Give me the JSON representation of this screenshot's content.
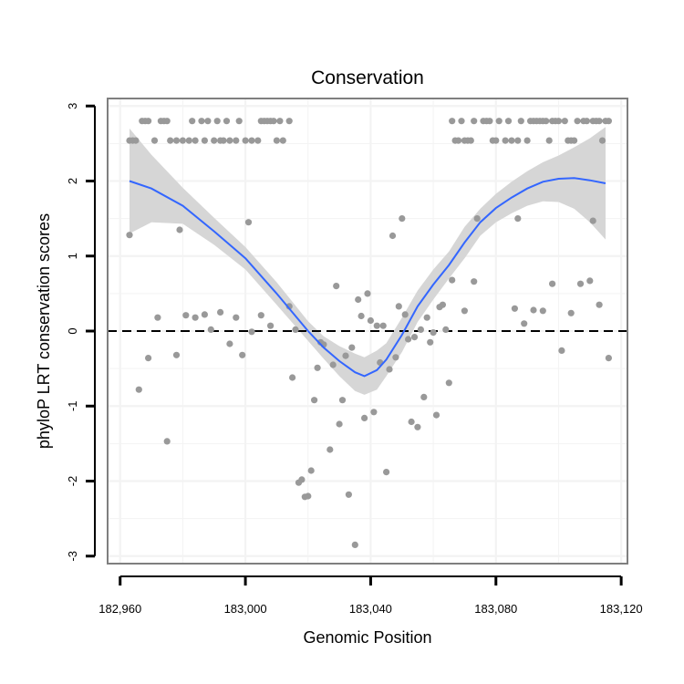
{
  "chart_data": {
    "type": "scatter",
    "title": "Conservation",
    "xlabel": "Genomic Position",
    "ylabel": "phyloP LRT conservation scores",
    "xlim": [
      182956,
      183122
    ],
    "ylim": [
      -3.1,
      3.1
    ],
    "x_ticks": [
      182960,
      183000,
      183040,
      183080,
      183120
    ],
    "x_tick_labels": [
      "182,960",
      "183,000",
      "183,040",
      "183,080",
      "183,120"
    ],
    "y_ticks": [
      -3,
      -2,
      -1,
      0,
      1,
      2,
      3
    ],
    "y_tick_labels": [
      "-3",
      "-2",
      "-1",
      "0",
      "1",
      "2",
      "3"
    ],
    "grid": true,
    "reference_line": {
      "y": 0,
      "style": "dashed"
    },
    "colors": {
      "points": "#999999",
      "smooth_line": "#3366ff",
      "confidence_band": "#d6d6d6",
      "panel_border": "#7f7f7f",
      "grid": "#f3f3f3",
      "reference_line": "#000000"
    },
    "points": [
      [
        182963,
        1.28
      ],
      [
        182966,
        -0.78
      ],
      [
        182969,
        -0.36
      ],
      [
        182972,
        0.18
      ],
      [
        182975,
        -1.47
      ],
      [
        182978,
        -0.32
      ],
      [
        182979,
        1.35
      ],
      [
        182981,
        0.21
      ],
      [
        182984,
        0.18
      ],
      [
        182987,
        0.22
      ],
      [
        182989,
        0.02
      ],
      [
        182992,
        0.25
      ],
      [
        182995,
        -0.17
      ],
      [
        182997,
        0.18
      ],
      [
        182999,
        -0.32
      ],
      [
        183001,
        1.45
      ],
      [
        183002,
        -0.01
      ],
      [
        183005,
        0.21
      ],
      [
        183008,
        0.07
      ],
      [
        183014,
        0.33
      ],
      [
        183015,
        -0.62
      ],
      [
        183016,
        0.02
      ],
      [
        183017,
        -2.02
      ],
      [
        183018,
        -1.98
      ],
      [
        183019,
        -2.21
      ],
      [
        183020,
        -2.2
      ],
      [
        183021,
        -1.86
      ],
      [
        183022,
        -0.92
      ],
      [
        183023,
        -0.49
      ],
      [
        183024,
        -0.15
      ],
      [
        183025,
        -0.18
      ],
      [
        183027,
        -1.58
      ],
      [
        183028,
        -0.45
      ],
      [
        183029,
        0.6
      ],
      [
        183030,
        -1.24
      ],
      [
        183031,
        -0.92
      ],
      [
        183032,
        -0.33
      ],
      [
        183033,
        -2.18
      ],
      [
        183034,
        -0.22
      ],
      [
        183035,
        -2.85
      ],
      [
        183036,
        0.42
      ],
      [
        183037,
        0.2
      ],
      [
        183038,
        -1.16
      ],
      [
        183039,
        0.5
      ],
      [
        183040,
        0.14
      ],
      [
        183041,
        -1.08
      ],
      [
        183042,
        0.07
      ],
      [
        183043,
        -0.42
      ],
      [
        183044,
        0.07
      ],
      [
        183045,
        -1.88
      ],
      [
        183046,
        -0.51
      ],
      [
        183047,
        1.27
      ],
      [
        183048,
        -0.35
      ],
      [
        183049,
        0.33
      ],
      [
        183050,
        1.5
      ],
      [
        183051,
        0.22
      ],
      [
        183052,
        -0.11
      ],
      [
        183053,
        -1.21
      ],
      [
        183054,
        -0.08
      ],
      [
        183055,
        -1.28
      ],
      [
        183056,
        0.02
      ],
      [
        183057,
        -0.88
      ],
      [
        183058,
        0.18
      ],
      [
        183059,
        -0.15
      ],
      [
        183060,
        -0.02
      ],
      [
        183061,
        -1.12
      ],
      [
        183062,
        0.32
      ],
      [
        183063,
        0.35
      ],
      [
        183064,
        0.02
      ],
      [
        183065,
        -0.69
      ],
      [
        183066,
        0.68
      ],
      [
        183070,
        0.27
      ],
      [
        183073,
        0.66
      ],
      [
        183074,
        1.5
      ],
      [
        183086,
        0.3
      ],
      [
        183087,
        1.5
      ],
      [
        183089,
        0.1
      ],
      [
        183092,
        0.28
      ],
      [
        183095,
        0.27
      ],
      [
        183098,
        0.63
      ],
      [
        183101,
        -0.26
      ],
      [
        183104,
        0.24
      ],
      [
        183107,
        0.63
      ],
      [
        183110,
        0.67
      ],
      [
        183111,
        1.47
      ],
      [
        183113,
        0.35
      ],
      [
        183116,
        -0.36
      ],
      [
        182963,
        2.54
      ],
      [
        182964,
        2.54
      ],
      [
        182965,
        2.54
      ],
      [
        182967,
        2.8
      ],
      [
        182968,
        2.8
      ],
      [
        182969,
        2.8
      ],
      [
        182971,
        2.54
      ],
      [
        182973,
        2.8
      ],
      [
        182974,
        2.8
      ],
      [
        182975,
        2.8
      ],
      [
        182976,
        2.54
      ],
      [
        182978,
        2.54
      ],
      [
        182980,
        2.54
      ],
      [
        182982,
        2.54
      ],
      [
        182983,
        2.8
      ],
      [
        182984,
        2.54
      ],
      [
        182986,
        2.8
      ],
      [
        182987,
        2.54
      ],
      [
        182988,
        2.8
      ],
      [
        182990,
        2.54
      ],
      [
        182991,
        2.8
      ],
      [
        182992,
        2.54
      ],
      [
        182993,
        2.54
      ],
      [
        182994,
        2.8
      ],
      [
        182995,
        2.54
      ],
      [
        182997,
        2.54
      ],
      [
        182998,
        2.8
      ],
      [
        183000,
        2.54
      ],
      [
        183002,
        2.54
      ],
      [
        183004,
        2.54
      ],
      [
        183005,
        2.8
      ],
      [
        183006,
        2.8
      ],
      [
        183007,
        2.8
      ],
      [
        183008,
        2.8
      ],
      [
        183009,
        2.8
      ],
      [
        183010,
        2.54
      ],
      [
        183011,
        2.8
      ],
      [
        183012,
        2.54
      ],
      [
        183014,
        2.8
      ],
      [
        183066,
        2.8
      ],
      [
        183067,
        2.54
      ],
      [
        183068,
        2.54
      ],
      [
        183069,
        2.8
      ],
      [
        183070,
        2.54
      ],
      [
        183071,
        2.54
      ],
      [
        183072,
        2.54
      ],
      [
        183073,
        2.8
      ],
      [
        183076,
        2.8
      ],
      [
        183077,
        2.8
      ],
      [
        183078,
        2.8
      ],
      [
        183079,
        2.54
      ],
      [
        183080,
        2.54
      ],
      [
        183081,
        2.8
      ],
      [
        183083,
        2.54
      ],
      [
        183084,
        2.8
      ],
      [
        183085,
        2.54
      ],
      [
        183087,
        2.54
      ],
      [
        183088,
        2.8
      ],
      [
        183090,
        2.54
      ],
      [
        183091,
        2.8
      ],
      [
        183092,
        2.8
      ],
      [
        183093,
        2.8
      ],
      [
        183094,
        2.8
      ],
      [
        183095,
        2.8
      ],
      [
        183096,
        2.8
      ],
      [
        183097,
        2.54
      ],
      [
        183098,
        2.8
      ],
      [
        183099,
        2.8
      ],
      [
        183100,
        2.8
      ],
      [
        183102,
        2.8
      ],
      [
        183103,
        2.54
      ],
      [
        183104,
        2.54
      ],
      [
        183105,
        2.54
      ],
      [
        183106,
        2.8
      ],
      [
        183108,
        2.8
      ],
      [
        183109,
        2.8
      ],
      [
        183111,
        2.8
      ],
      [
        183112,
        2.8
      ],
      [
        183113,
        2.8
      ],
      [
        183114,
        2.54
      ],
      [
        183115,
        2.8
      ],
      [
        183116,
        2.8
      ]
    ],
    "smooth": {
      "x": [
        182963,
        182970,
        182980,
        182990,
        183000,
        183010,
        183020,
        183025,
        183030,
        183035,
        183038,
        183042,
        183045,
        183050,
        183055,
        183060,
        183065,
        183070,
        183075,
        183080,
        183085,
        183090,
        183095,
        183100,
        183105,
        183110,
        183115
      ],
      "y": [
        2.0,
        1.9,
        1.67,
        1.33,
        0.97,
        0.5,
        0.0,
        -0.22,
        -0.4,
        -0.55,
        -0.6,
        -0.52,
        -0.38,
        -0.05,
        0.33,
        0.62,
        0.88,
        1.18,
        1.45,
        1.64,
        1.78,
        1.9,
        1.99,
        2.03,
        2.04,
        2.01,
        1.97
      ],
      "lower": [
        1.3,
        1.45,
        1.43,
        1.15,
        0.82,
        0.35,
        -0.13,
        -0.37,
        -0.6,
        -0.8,
        -0.85,
        -0.78,
        -0.6,
        -0.28,
        0.12,
        0.42,
        0.7,
        0.97,
        1.27,
        1.45,
        1.57,
        1.67,
        1.73,
        1.72,
        1.63,
        1.45,
        1.22
      ],
      "upper": [
        2.7,
        2.35,
        1.91,
        1.51,
        1.12,
        0.65,
        0.13,
        -0.07,
        -0.2,
        -0.3,
        -0.35,
        -0.26,
        -0.16,
        0.18,
        0.54,
        0.82,
        1.06,
        1.39,
        1.63,
        1.83,
        1.99,
        2.13,
        2.25,
        2.34,
        2.45,
        2.57,
        2.72
      ]
    }
  }
}
